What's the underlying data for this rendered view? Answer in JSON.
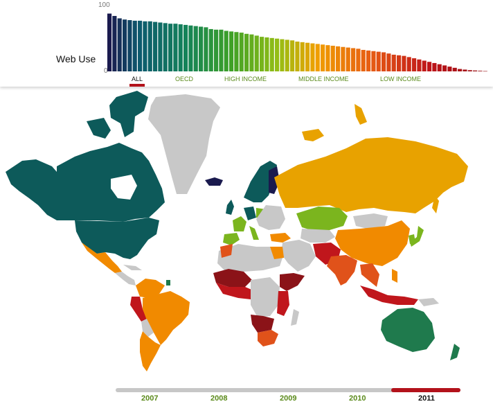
{
  "chart_data": {
    "type": "bar",
    "ylabel": "Web Use",
    "ylim": [
      0,
      100
    ],
    "yticks": [
      "100",
      "0"
    ],
    "values": [
      97,
      93,
      89,
      87,
      86,
      85,
      85,
      84,
      84,
      83,
      82,
      81,
      80,
      80,
      79,
      78,
      77,
      76,
      75,
      74,
      71,
      70,
      70,
      68,
      67,
      66,
      65,
      63,
      62,
      60,
      58,
      57,
      56,
      55,
      54,
      53,
      52,
      50,
      49,
      48,
      47,
      46,
      45,
      44,
      43,
      42,
      41,
      40,
      39,
      38,
      36,
      35,
      34,
      33,
      32,
      30,
      28,
      27,
      26,
      24,
      22,
      20,
      18,
      16,
      14,
      12,
      10,
      8,
      6,
      4,
      3,
      2,
      1.5,
      1,
      0.5
    ]
  },
  "filters": [
    {
      "label": "ALL",
      "active": true
    },
    {
      "label": "OECD"
    },
    {
      "label": "HIGH INCOME"
    },
    {
      "label": "MIDDLE INCOME"
    },
    {
      "label": "LOW INCOME"
    }
  ],
  "timeline": {
    "years": [
      "2007",
      "2008",
      "2009",
      "2010",
      "2011"
    ],
    "selected": "2011"
  },
  "colors": {
    "very_high": "#1a1a4e",
    "high_teal": "#0d5a5a",
    "green": "#1f7a4d",
    "light_green": "#7bb51e",
    "orange": "#f18a00",
    "amber": "#e8a200",
    "red_orange": "#e0521a",
    "red": "#c0161c",
    "dark_red": "#8b1318",
    "no_data": "#c8c8c8",
    "accent": "#b3121b"
  }
}
